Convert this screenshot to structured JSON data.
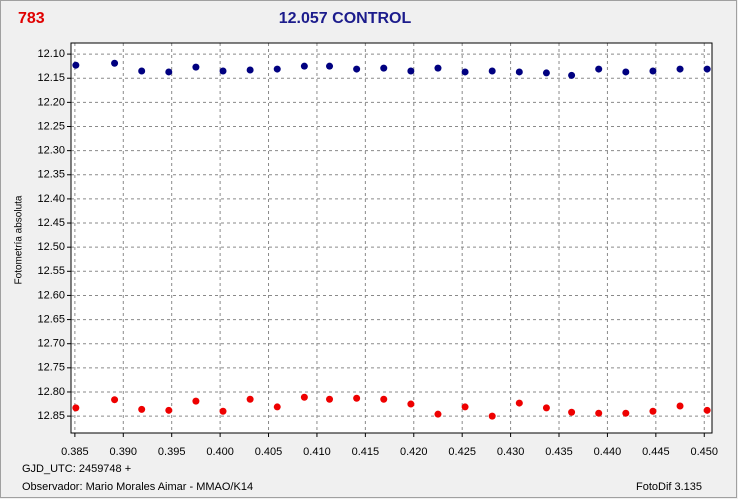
{
  "chart_data": {
    "type": "scatter",
    "tag": "783",
    "title": "12.057 CONTROL",
    "y_label": "Fotometría absoluta",
    "footer_left": [
      "GJD_UTC: 2459748 +",
      "Observador: Mario Morales Aimar - MMAO/K14"
    ],
    "footer_right": "FotoDif 3.135",
    "xlim": [
      0.3846,
      0.4508
    ],
    "ylim": [
      12.077,
      12.885
    ],
    "y_inverted": true,
    "grid": true,
    "xticks": [
      {
        "value": 0.385,
        "label": "0.385"
      },
      {
        "value": 0.39,
        "label": "0.390"
      },
      {
        "value": 0.395,
        "label": "0.395"
      },
      {
        "value": 0.4,
        "label": "0.400"
      },
      {
        "value": 0.405,
        "label": "0.405"
      },
      {
        "value": 0.41,
        "label": "0.410"
      },
      {
        "value": 0.415,
        "label": "0.415"
      },
      {
        "value": 0.42,
        "label": "0.420"
      },
      {
        "value": 0.425,
        "label": "0.425"
      },
      {
        "value": 0.43,
        "label": "0.430"
      },
      {
        "value": 0.435,
        "label": "0.435"
      },
      {
        "value": 0.44,
        "label": "0.440"
      },
      {
        "value": 0.445,
        "label": "0.445"
      },
      {
        "value": 0.45,
        "label": "0.450"
      }
    ],
    "yticks": [
      {
        "value": 12.1,
        "label": "12.10"
      },
      12.15,
      {
        "value": 12.2,
        "label": "12.20"
      },
      12.25,
      {
        "value": 12.3,
        "label": "12.30"
      },
      12.35,
      {
        "value": 12.4,
        "label": "12.40"
      },
      12.45,
      {
        "value": 12.5,
        "label": "12.50"
      },
      12.55,
      {
        "value": 12.6,
        "label": "12.60"
      },
      12.65,
      {
        "value": 12.7,
        "label": "12.70"
      },
      12.75,
      {
        "value": 12.8,
        "label": "12.80"
      },
      12.85
    ],
    "x": [
      0.3851,
      0.3891,
      0.3919,
      0.3947,
      0.3975,
      0.4003,
      0.4031,
      0.4059,
      0.4087,
      0.4113,
      0.4141,
      0.4169,
      0.4197,
      0.4225,
      0.4253,
      0.4281,
      0.4309,
      0.4337,
      0.4363,
      0.4391,
      0.4419,
      0.4447,
      0.4475,
      0.4503
    ],
    "series": [
      {
        "color": "#000080",
        "values": [
          12.123,
          12.119,
          12.135,
          12.137,
          12.127,
          12.135,
          12.133,
          12.131,
          12.125,
          12.125,
          12.131,
          12.129,
          12.135,
          12.129,
          12.137,
          12.135,
          12.137,
          12.139,
          12.144,
          12.131,
          12.137,
          12.135,
          12.131,
          12.131
        ]
      },
      {
        "color": "#ee0000",
        "values": [
          12.833,
          12.816,
          12.836,
          12.838,
          12.819,
          12.84,
          12.815,
          12.831,
          12.811,
          12.815,
          12.813,
          12.815,
          12.825,
          12.846,
          12.831,
          12.85,
          12.823,
          12.833,
          12.842,
          12.844,
          12.844,
          12.84,
          12.829,
          12.838
        ]
      }
    ]
  }
}
